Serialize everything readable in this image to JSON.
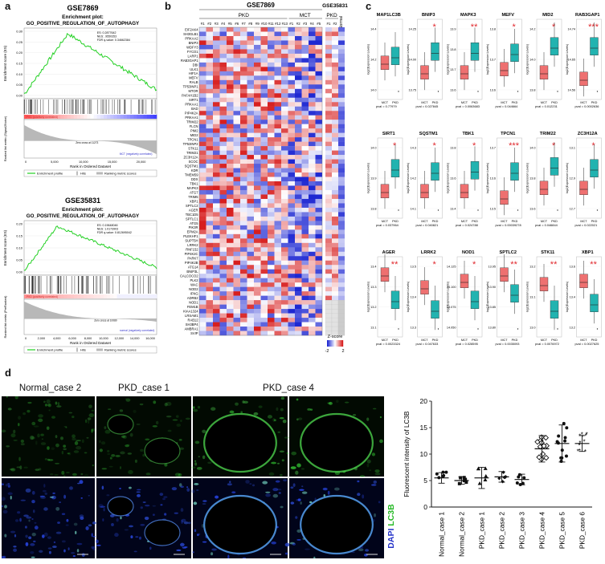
{
  "panel_labels": {
    "a": "a",
    "b": "b",
    "c": "c",
    "d": "d"
  },
  "gsea": [
    {
      "dataset": "GSE7869",
      "enrichment_title": "Enrichment plot:",
      "geneset": "GO_POSITIVE_REGULATION_OF_AUTOPHAGY",
      "es": "ES: 0.2877642",
      "nes": "NES: .9550353",
      "fdr": "FDR q-value: 0.34662384",
      "y_label": "Enrichment score (ES)",
      "y_ticks": [
        "0.30",
        "0.25",
        "0.20",
        "0.15",
        "0.10",
        "0.05",
        "0.00"
      ],
      "rank_label": "Ranked list metric (Signal2Noise)",
      "pos_label": "PKD (positively correlated)",
      "neg_label": "MCT (negatively correlated)",
      "zero_label": "Zero cross at 11273",
      "x_label": "Rank in Ordered Dataset",
      "x_ticks": [
        "0",
        "5,000",
        "10,000",
        "15,000",
        "20,000"
      ],
      "legend": [
        "Enrichment profile",
        "Hits",
        "Ranking metric scores"
      ]
    },
    {
      "dataset": "GSE35831",
      "enrichment_title": "Enrichment plot:",
      "geneset": "GO_POSITIVE_REGULATION_OF_AUTOPHAGY",
      "es": "ES: 0.19648046",
      "nes": "NES: 1.0173903",
      "fdr": "FDR q-value: 0.812695042",
      "y_label": "Enrichment score (ES)",
      "y_ticks": [
        "0.20",
        "0.15",
        "0.10",
        "0.05",
        "0.00"
      ],
      "rank_label": "Ranked list metric (PreRanked)",
      "pos_label": "PKD (positively correlated)",
      "neg_label": "normal (negatively correlated)",
      "zero_label": "Zero cross at 10080",
      "x_label": "Rank in Ordered Dataset",
      "x_ticks": [
        "0",
        "2,000",
        "4,000",
        "6,000",
        "8,000",
        "10,000",
        "12,000",
        "14,000",
        "16,000"
      ],
      "legend": [
        "Enrichment profile",
        "Hits",
        "Ranking metric scores"
      ]
    }
  ],
  "heatmap": {
    "title": "GSE7869",
    "title2": "GSE35831",
    "group_pkd": "PKD",
    "group_mct": "MCT",
    "group_pkd2": "PKD",
    "group_normal": "Normal",
    "columns_pkd": [
      "#1",
      "#2",
      "#3",
      "#4",
      "#5",
      "#6",
      "#7",
      "#8",
      "#9",
      "#10",
      "#11",
      "#12",
      "#13"
    ],
    "columns_mct": [
      "#1",
      "#2",
      "#3",
      "#4",
      "#5"
    ],
    "columns_pkd2": [
      "#1",
      "#2"
    ],
    "genes": [
      "EIF2AK4",
      "SH3GLB1",
      "PRKAA2",
      "BNIP3",
      "WDFY3",
      "FYCO1",
      "LARP1",
      "RAB3GAP1",
      "DBI",
      "ULK1",
      "HIF1A",
      "MEFV",
      "RALB",
      "TP53INP1",
      "MTOR",
      "PAFAH1B2",
      "SIRT1",
      "PRKAA1",
      "BAD",
      "PIP4K2A",
      "PRKAA1",
      "TRIM22",
      "FLCN",
      "PIM2",
      "MID2",
      "TPCN1",
      "TP53INP2",
      "STK11",
      "TRIM21",
      "ZC3H12A",
      "SCOC",
      "SQSTM1",
      "KDR",
      "TMEM59",
      "DDX",
      "TBK1",
      "MAPK3",
      "ATG7",
      "TRIM5",
      "XBP1",
      "SPTLC2",
      "AGER",
      "TBC1D5",
      "SPTLC1",
      "ATG5",
      "PIK3R",
      "EPM2A",
      "PLEKHF1",
      "SUPT5H",
      "LRRK2",
      "RNF152",
      "PIP4K2C",
      "PARK7",
      "PIP4K2B",
      "ATG14",
      "BNIP3L",
      "CALCOCO2",
      "PLK2",
      "WAC",
      "NOD2",
      "IFNG",
      "ADRB2",
      "NOD1",
      "FEM1B",
      "KIAA1324",
      "LRSAM1",
      "RAB12",
      "SH3BP4",
      "AMBRA1",
      "SVIP"
    ],
    "zscore_label": "Z-score",
    "zscore_min": "-2",
    "zscore_max": "2"
  },
  "boxplots": {
    "y_label": "log2(Expression Levels)",
    "x_labels": [
      "MCT",
      "PKD"
    ],
    "genes": [
      {
        "name": "MAP1LC3B",
        "sig": "",
        "pval": "pval = 0.77979",
        "yticks": [
          "14.4",
          "14.2",
          "14.0"
        ]
      },
      {
        "name": "BNIP3",
        "sig": "*",
        "pval": "pval = 0.027845",
        "yticks": [
          "14.25",
          "14.00",
          "13.75"
        ]
      },
      {
        "name": "MAPK3",
        "sig": "**",
        "pval": "pval = 0.0063683",
        "yticks": [
          "13.9",
          "13.8",
          "13.7",
          "13.6"
        ]
      },
      {
        "name": "MEFV",
        "sig": "*",
        "pval": "pval = 0.044664",
        "yticks": [
          "13.8",
          "13.7",
          "13.6"
        ]
      },
      {
        "name": "MID2",
        "sig": "*",
        "pval": "pval = 0.012231",
        "yticks": [
          "14.2",
          "14.0",
          "13.8"
        ]
      },
      {
        "name": "RAB3GAP1",
        "sig": "***",
        "pval": "pval = 0.0002636",
        "yticks": [
          "14.74",
          "14.65",
          "14.56"
        ]
      },
      {
        "name": "SIRT1",
        "sig": "*",
        "pval": "pval = 0.037964",
        "yticks": [
          "14.0",
          "13.9",
          "13.8"
        ]
      },
      {
        "name": "SQSTM1",
        "sig": "*",
        "pval": "pval = 0.040821",
        "yticks": [
          "14.3",
          "14.2",
          "14.1"
        ]
      },
      {
        "name": "TBK1",
        "sig": "*",
        "pval": "pval = 0.024788",
        "yticks": [
          "13.8",
          "13.6",
          "13.4"
        ]
      },
      {
        "name": "TPCN1",
        "sig": "***",
        "pval": "pval = 0.00039278",
        "yticks": [
          "13.7",
          "13.6",
          "13.5"
        ]
      },
      {
        "name": "TRIM22",
        "sig": "*",
        "pval": "pval = 0.046844",
        "yticks": [
          "14.0",
          "13.8",
          "13.6"
        ]
      },
      {
        "name": "ZC3H12A",
        "sig": "*",
        "pval": "pval = 0.022021",
        "yticks": [
          "13.1",
          "12.9",
          "12.7"
        ]
      },
      {
        "name": "AGER",
        "sig": "**",
        "pval": "pval = 0.0023324",
        "yticks": [
          "13.4",
          "13.3",
          "13.2",
          "13.1"
        ]
      },
      {
        "name": "LRRK2",
        "sig": "*",
        "pval": "pval = 0.047633",
        "yticks": [
          "13.5",
          "13.4",
          "13.3"
        ]
      },
      {
        "name": "NOD1",
        "sig": "*",
        "pval": "pval = 0.028595",
        "yticks": [
          "14.125",
          "14.100",
          "14.075",
          "14.050"
        ]
      },
      {
        "name": "SPTLC2",
        "sig": "**",
        "pval": "pval = 0.0035093",
        "yticks": [
          "13.95",
          "13.90",
          "13.85",
          "13.80"
        ]
      },
      {
        "name": "STK11",
        "sig": "**",
        "pval": "pval = 0.0076972",
        "yticks": [
          "13.2",
          "13.1",
          "13.0"
        ]
      },
      {
        "name": "XBP1",
        "sig": "**",
        "pval": "pval = 0.0027625",
        "yticks": [
          "13.6",
          "13.4",
          "13.2"
        ]
      }
    ]
  },
  "micrographs": {
    "labels": [
      "Normal_case 2",
      "PKD_case 1",
      "PKD_case 4"
    ],
    "stain_dapi": "DAPI",
    "stain_lc3b": "LC3B"
  },
  "scatter": {
    "y_label": "Fluorescent intensity of LC3B",
    "y_ticks": [
      "0",
      "5",
      "10",
      "15",
      "20"
    ],
    "categories": [
      "Normal_case 1",
      "Normal_case 2",
      "PKD_case 1",
      "PKD_case 2",
      "PKD_case 3",
      "PKD_case 4",
      "PKD_case 5",
      "PKD_case 6"
    ],
    "means": [
      5.5,
      5.0,
      5.5,
      5.7,
      5.2,
      11.0,
      12.0,
      12.0
    ],
    "sd": [
      1.0,
      0.7,
      2.0,
      1.0,
      1.0,
      2.5,
      3.5,
      1.5
    ]
  },
  "colors": {
    "red": "#e0262b",
    "blue": "#2432c8",
    "teal": "#22b3b0",
    "salmon": "#ee7070",
    "green": "#23d023"
  }
}
